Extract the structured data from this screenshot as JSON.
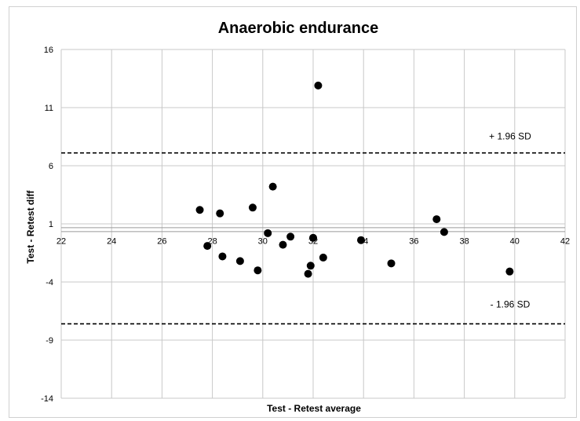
{
  "chart_data": {
    "type": "scatter",
    "title": "Anaerobic endurance",
    "xlabel": "Test - Retest average",
    "ylabel": "Test - Retest diff",
    "xlim": [
      22,
      42
    ],
    "ylim": [
      -14,
      16
    ],
    "x_ticks": [
      22,
      24,
      26,
      28,
      30,
      32,
      34,
      36,
      38,
      40,
      42
    ],
    "y_ticks": [
      16,
      11,
      6,
      1,
      -4,
      -9,
      -14
    ],
    "grid": true,
    "legend": "none",
    "points": [
      {
        "x": 27.5,
        "y": 2.2
      },
      {
        "x": 27.8,
        "y": -0.9
      },
      {
        "x": 28.3,
        "y": 1.9
      },
      {
        "x": 28.4,
        "y": -1.8
      },
      {
        "x": 29.1,
        "y": -2.2
      },
      {
        "x": 29.6,
        "y": 2.4
      },
      {
        "x": 29.8,
        "y": -3.0
      },
      {
        "x": 30.2,
        "y": 0.2
      },
      {
        "x": 30.4,
        "y": 4.2
      },
      {
        "x": 30.8,
        "y": -0.8
      },
      {
        "x": 31.1,
        "y": -0.1
      },
      {
        "x": 31.8,
        "y": -3.3
      },
      {
        "x": 31.9,
        "y": -2.6
      },
      {
        "x": 32.0,
        "y": -0.2
      },
      {
        "x": 32.2,
        "y": 12.9
      },
      {
        "x": 32.4,
        "y": -1.9
      },
      {
        "x": 33.9,
        "y": -0.4
      },
      {
        "x": 35.1,
        "y": -2.4
      },
      {
        "x": 36.9,
        "y": 1.4
      },
      {
        "x": 37.2,
        "y": 0.3
      },
      {
        "x": 39.8,
        "y": -3.1
      }
    ],
    "reference_lines": [
      {
        "label": "+ 1.96 SD",
        "y": 7.1,
        "style": "dashed"
      },
      {
        "label": "",
        "y": 0.5,
        "style": "solid"
      },
      {
        "label": "- 1.96 SD",
        "y": -7.6,
        "style": "dashed"
      }
    ],
    "colors": {
      "points": "#000000",
      "grid": "#c8c8c8",
      "mean_line": "#9a9a9a",
      "axis": "#888888"
    }
  }
}
